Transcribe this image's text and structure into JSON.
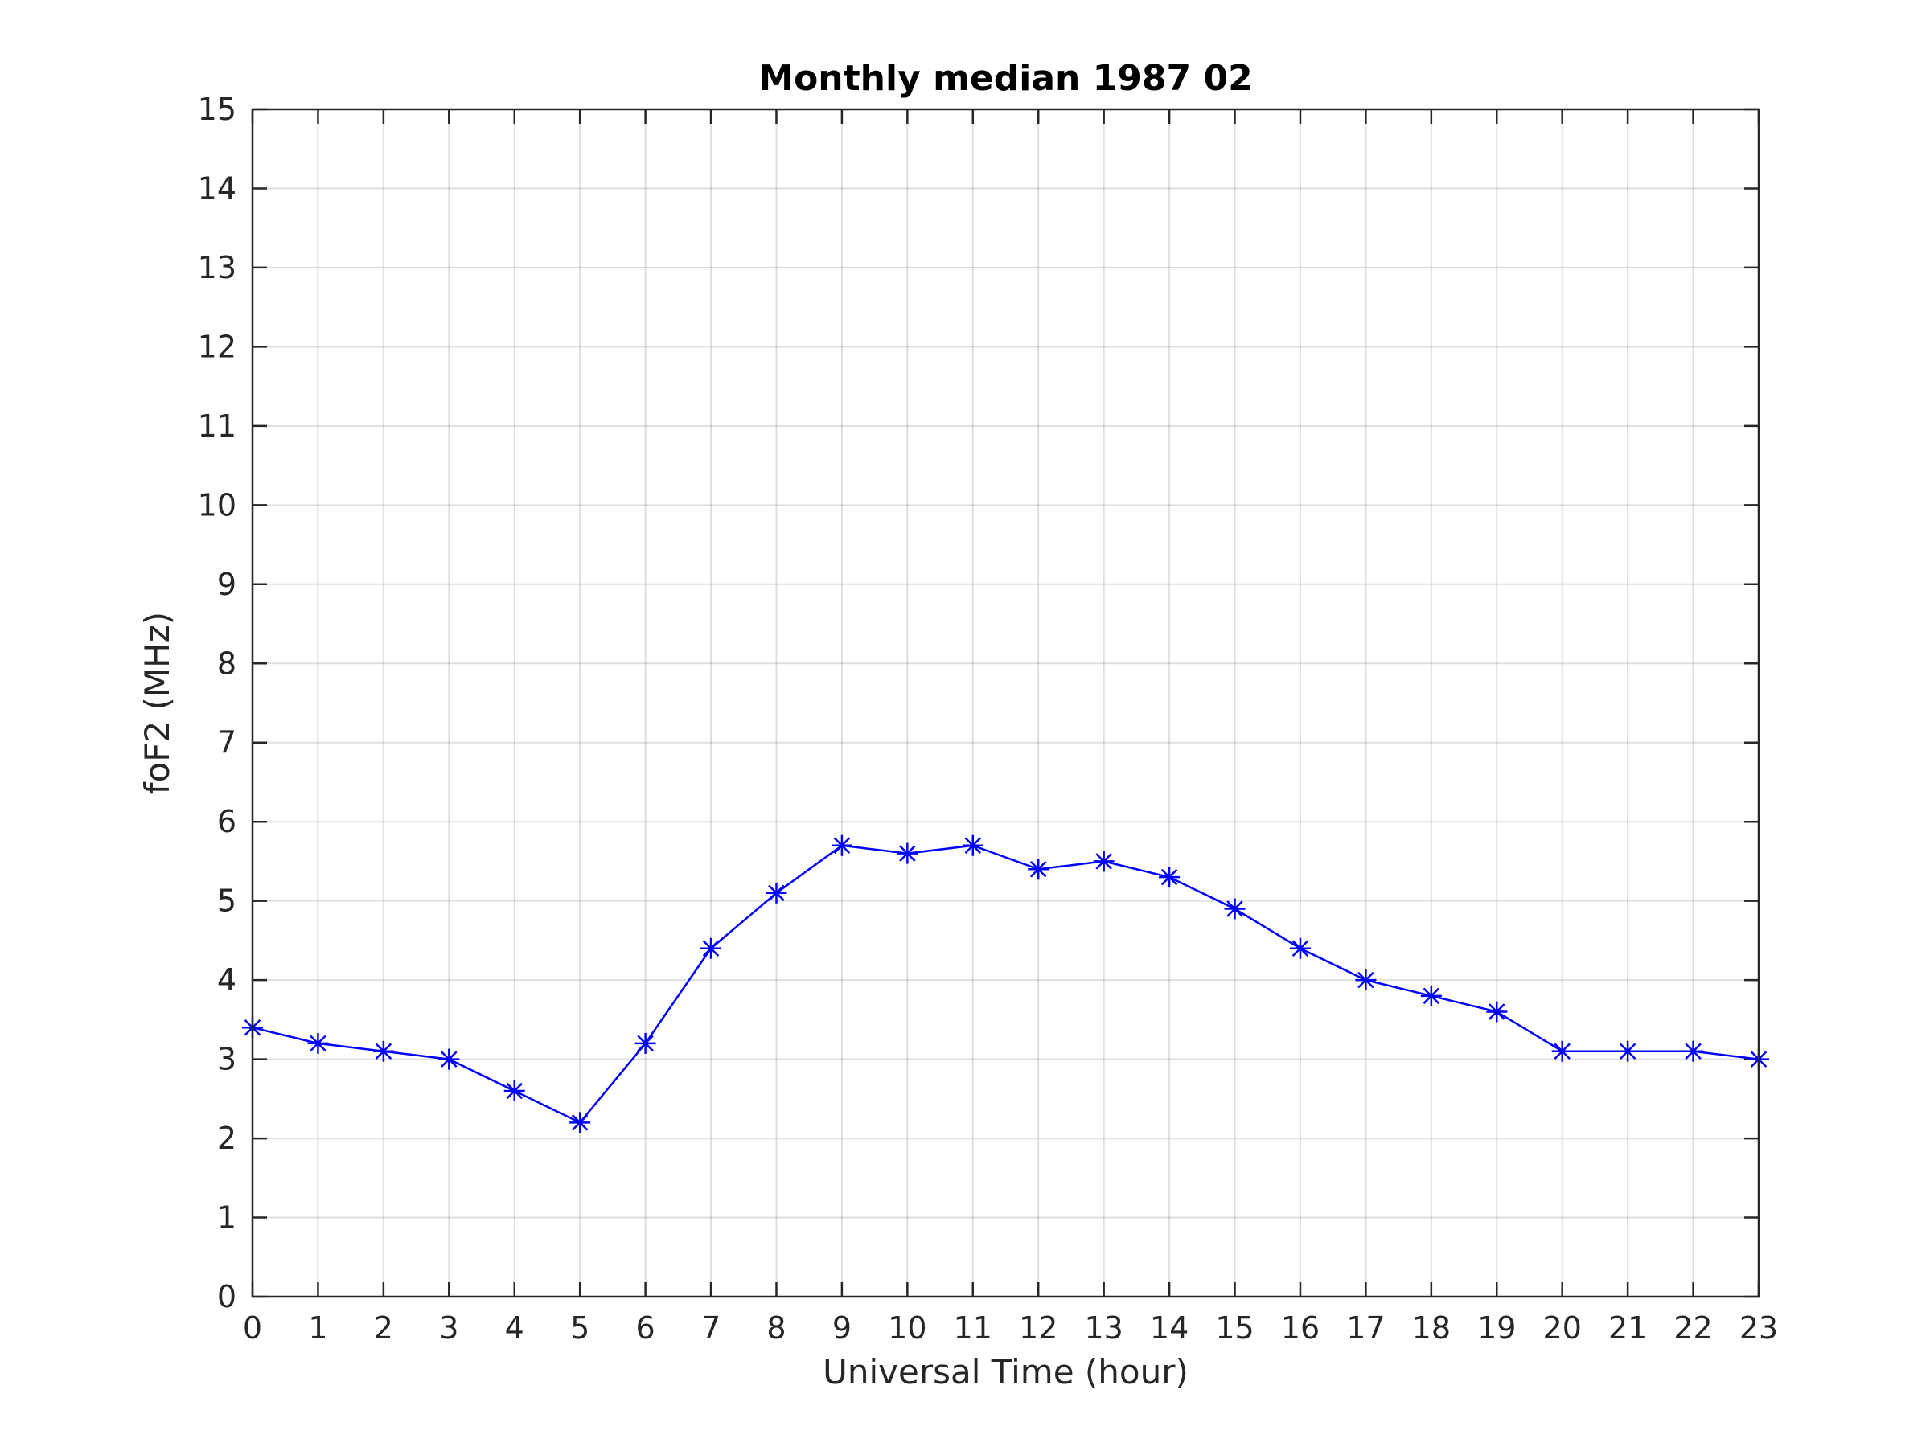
{
  "chart_data": {
    "type": "line",
    "title": "Monthly median 1987 02",
    "xlabel": "Universal Time (hour)",
    "ylabel": "foF2 (MHz)",
    "xlim": [
      0,
      23
    ],
    "ylim": [
      0,
      15
    ],
    "xticks": [
      "0",
      "1",
      "2",
      "3",
      "4",
      "5",
      "6",
      "7",
      "8",
      "9",
      "10",
      "11",
      "12",
      "13",
      "14",
      "15",
      "16",
      "17",
      "18",
      "19",
      "20",
      "21",
      "22",
      "23"
    ],
    "yticks": [
      "0",
      "1",
      "2",
      "3",
      "4",
      "5",
      "6",
      "7",
      "8",
      "9",
      "10",
      "11",
      "12",
      "13",
      "14",
      "15"
    ],
    "grid": true,
    "x": [
      0,
      1,
      2,
      3,
      4,
      5,
      6,
      7,
      8,
      9,
      10,
      11,
      12,
      13,
      14,
      15,
      16,
      17,
      18,
      19,
      20,
      21,
      22,
      23
    ],
    "series": [
      {
        "values": [
          3.4,
          3.2,
          3.1,
          3.0,
          2.6,
          2.2,
          3.2,
          4.4,
          5.1,
          5.7,
          5.6,
          5.7,
          5.4,
          5.5,
          5.3,
          4.9,
          4.4,
          4.0,
          3.8,
          3.6,
          3.1,
          3.1,
          3.1,
          3.0
        ],
        "color": "#0000ff",
        "marker": "asterisk"
      }
    ]
  }
}
